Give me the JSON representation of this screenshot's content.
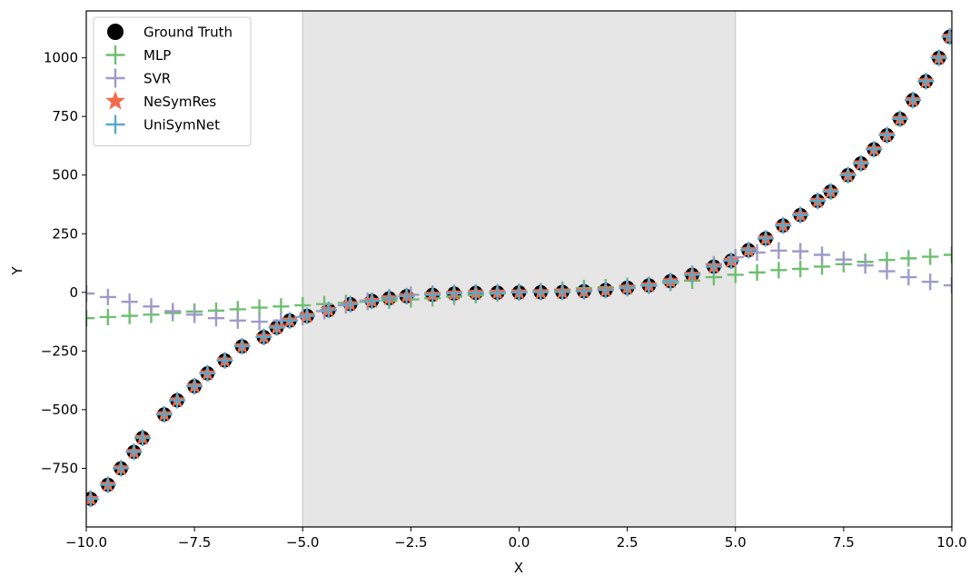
{
  "chart_data": {
    "type": "scatter",
    "xlabel": "X",
    "ylabel": "Y",
    "xlim": [
      -10,
      10
    ],
    "ylim": [
      -1000,
      1200
    ],
    "x_ticks": [
      -10.0,
      -7.5,
      -5.0,
      -2.5,
      0.0,
      2.5,
      5.0,
      7.5,
      10.0
    ],
    "x_tick_labels": [
      "−10.0",
      "−7.5",
      "−5.0",
      "−2.5",
      "0.0",
      "2.5",
      "5.0",
      "7.5",
      "10.0"
    ],
    "y_ticks": [
      -750,
      -500,
      -250,
      0,
      250,
      500,
      750,
      1000
    ],
    "y_tick_labels": [
      "−750",
      "−500",
      "−250",
      "0",
      "250",
      "500",
      "750",
      "1000"
    ],
    "shaded_region": [
      -5,
      5
    ],
    "grid": false,
    "legend_position": "top-left",
    "series": [
      {
        "name": "Ground Truth",
        "marker": "circle",
        "color": "#000000",
        "x": [
          -9.9,
          -9.5,
          -9.2,
          -8.9,
          -8.7,
          -8.2,
          -7.9,
          -7.5,
          -7.2,
          -6.8,
          -6.4,
          -5.9,
          -5.6,
          -5.3,
          -4.9,
          -4.4,
          -3.9,
          -3.4,
          -3.0,
          -2.6,
          -2.0,
          -1.5,
          -1.0,
          -0.5,
          0.0,
          0.5,
          1.0,
          1.5,
          2.0,
          2.5,
          3.0,
          3.5,
          4.0,
          4.5,
          4.9,
          5.3,
          5.7,
          6.1,
          6.5,
          6.9,
          7.2,
          7.6,
          7.9,
          8.2,
          8.5,
          8.8,
          9.1,
          9.4,
          9.7,
          9.95
        ],
        "y": [
          -880,
          -820,
          -750,
          -680,
          -620,
          -520,
          -460,
          -400,
          -345,
          -290,
          -230,
          -190,
          -150,
          -120,
          -100,
          -75,
          -50,
          -36,
          -25,
          -16,
          -10,
          -5,
          -2,
          -1,
          0,
          1,
          2,
          5,
          10,
          20,
          30,
          48,
          75,
          110,
          135,
          180,
          230,
          285,
          330,
          390,
          430,
          500,
          550,
          610,
          670,
          740,
          820,
          900,
          1000,
          1090
        ]
      },
      {
        "name": "MLP",
        "marker": "plus",
        "color": "#6dbf70",
        "x": [
          -10,
          -9.5,
          -9,
          -8.5,
          -8,
          -7.5,
          -7,
          -6.5,
          -6,
          -5.5,
          -5,
          -4.5,
          -4,
          -3.5,
          -3,
          -2.5,
          -2,
          -1.5,
          -1,
          -0.5,
          0,
          0.5,
          1,
          1.5,
          2,
          2.5,
          3,
          3.5,
          4,
          4.5,
          5,
          5.5,
          6,
          6.5,
          7,
          7.5,
          8,
          8.5,
          9,
          9.5,
          10
        ],
        "y": [
          -110,
          -105,
          -100,
          -95,
          -88,
          -82,
          -78,
          -72,
          -65,
          -60,
          -55,
          -50,
          -45,
          -40,
          -35,
          -30,
          -25,
          -18,
          -12,
          -5,
          0,
          5,
          12,
          18,
          22,
          28,
          32,
          40,
          50,
          65,
          75,
          85,
          95,
          100,
          110,
          120,
          130,
          138,
          145,
          152,
          160
        ]
      },
      {
        "name": "SVR",
        "marker": "plus",
        "color": "#9e9ac8",
        "x": [
          -10,
          -9.5,
          -9,
          -8.5,
          -8,
          -7.5,
          -7,
          -6.5,
          -6,
          -5.5,
          -5,
          -4.5,
          -4,
          -3.5,
          -3,
          -2.5,
          -2,
          -1.5,
          -1,
          -0.5,
          0,
          0.5,
          1,
          1.5,
          2,
          2.5,
          3,
          3.5,
          4,
          4.5,
          5,
          5.5,
          6,
          6.5,
          7,
          7.5,
          8,
          8.5,
          9,
          9.5,
          10
        ],
        "y": [
          -5,
          -20,
          -40,
          -60,
          -80,
          -95,
          -110,
          -120,
          -125,
          -120,
          -105,
          -80,
          -55,
          -35,
          -20,
          -10,
          -5,
          -2,
          0,
          1,
          2,
          3,
          5,
          8,
          12,
          18,
          28,
          45,
          80,
          120,
          150,
          170,
          178,
          175,
          160,
          140,
          115,
          90,
          65,
          45,
          30
        ]
      },
      {
        "name": "NeSymRes",
        "marker": "star",
        "color": "#f26b4a",
        "x": [
          -9.9,
          -9.5,
          -9.2,
          -8.9,
          -8.7,
          -8.2,
          -7.9,
          -7.5,
          -7.2,
          -6.8,
          -6.4,
          -5.9,
          -5.6,
          -5.3,
          -4.9,
          -4.4,
          -3.9,
          -3.4,
          -3.0,
          -2.6,
          -2.0,
          -1.5,
          -1.0,
          -0.5,
          0.0,
          0.5,
          1.0,
          1.5,
          2.0,
          2.5,
          3.0,
          3.5,
          4.0,
          4.5,
          4.9,
          5.3,
          5.7,
          6.1,
          6.5,
          6.9,
          7.2,
          7.6,
          7.9,
          8.2,
          8.5,
          8.8,
          9.1,
          9.4,
          9.7,
          9.95
        ],
        "y": [
          -880,
          -820,
          -750,
          -680,
          -620,
          -520,
          -460,
          -400,
          -345,
          -290,
          -230,
          -190,
          -150,
          -120,
          -100,
          -75,
          -50,
          -36,
          -25,
          -16,
          -10,
          -5,
          -2,
          -1,
          0,
          1,
          2,
          5,
          10,
          20,
          30,
          48,
          75,
          110,
          135,
          180,
          230,
          285,
          330,
          390,
          430,
          500,
          550,
          610,
          670,
          740,
          820,
          900,
          1000,
          1090
        ]
      },
      {
        "name": "UniSymNet",
        "marker": "plus",
        "color": "#5aa9cc",
        "x": [
          -9.9,
          -9.5,
          -9.2,
          -8.9,
          -8.7,
          -8.2,
          -7.9,
          -7.5,
          -7.2,
          -6.8,
          -6.4,
          -5.9,
          -5.6,
          -5.3,
          -4.9,
          -4.4,
          -3.9,
          -3.4,
          -3.0,
          -2.6,
          -2.0,
          -1.5,
          -1.0,
          -0.5,
          0.0,
          0.5,
          1.0,
          1.5,
          2.0,
          2.5,
          3.0,
          3.5,
          4.0,
          4.5,
          4.9,
          5.3,
          5.7,
          6.1,
          6.5,
          6.9,
          7.2,
          7.6,
          7.9,
          8.2,
          8.5,
          8.8,
          9.1,
          9.4,
          9.7,
          9.95
        ],
        "y": [
          -880,
          -820,
          -750,
          -680,
          -620,
          -520,
          -460,
          -400,
          -345,
          -290,
          -230,
          -190,
          -150,
          -120,
          -100,
          -75,
          -50,
          -36,
          -25,
          -16,
          -10,
          -5,
          -2,
          -1,
          0,
          1,
          2,
          5,
          10,
          20,
          30,
          48,
          75,
          110,
          135,
          180,
          230,
          285,
          330,
          390,
          430,
          500,
          550,
          610,
          670,
          740,
          820,
          900,
          1000,
          1090
        ]
      }
    ]
  }
}
